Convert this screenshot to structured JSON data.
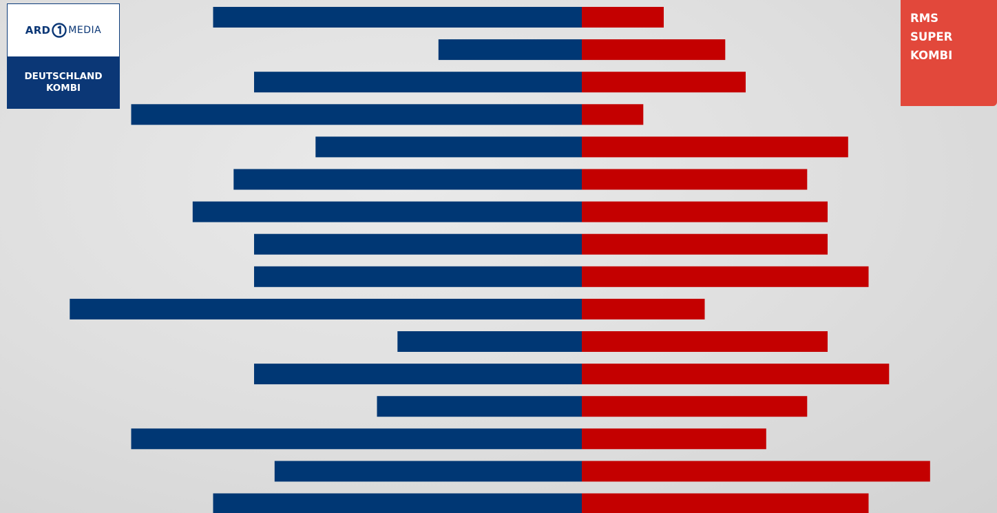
{
  "logos": {
    "left": {
      "brand_ard": "ARD",
      "brand_media": "MEDIA",
      "line1": "DEUTSCHLAND",
      "line2": "KOMBI"
    },
    "right": {
      "line1": "RMS",
      "line2": "SUPER",
      "line3": "KOMBI"
    }
  },
  "colors": {
    "left_series": "#003774",
    "right_series": "#c40000",
    "right_logo_bg": "#e2483b",
    "left_logo_band": "#0b3776"
  },
  "chart_data": {
    "type": "bar",
    "orientation": "horizontal-diverging",
    "grid": false,
    "series": [
      {
        "name": "DEUTSCHLAND KOMBI",
        "side": "left",
        "values": [
          18,
          7,
          16,
          22,
          13,
          17,
          19,
          16,
          16,
          25,
          9,
          16,
          10,
          22,
          15,
          18
        ]
      },
      {
        "name": "RMS SUPER KOMBI",
        "side": "right",
        "values": [
          4,
          7,
          8,
          3,
          13,
          11,
          12,
          12,
          14,
          6,
          12,
          15,
          11,
          9,
          17,
          14
        ]
      }
    ]
  }
}
